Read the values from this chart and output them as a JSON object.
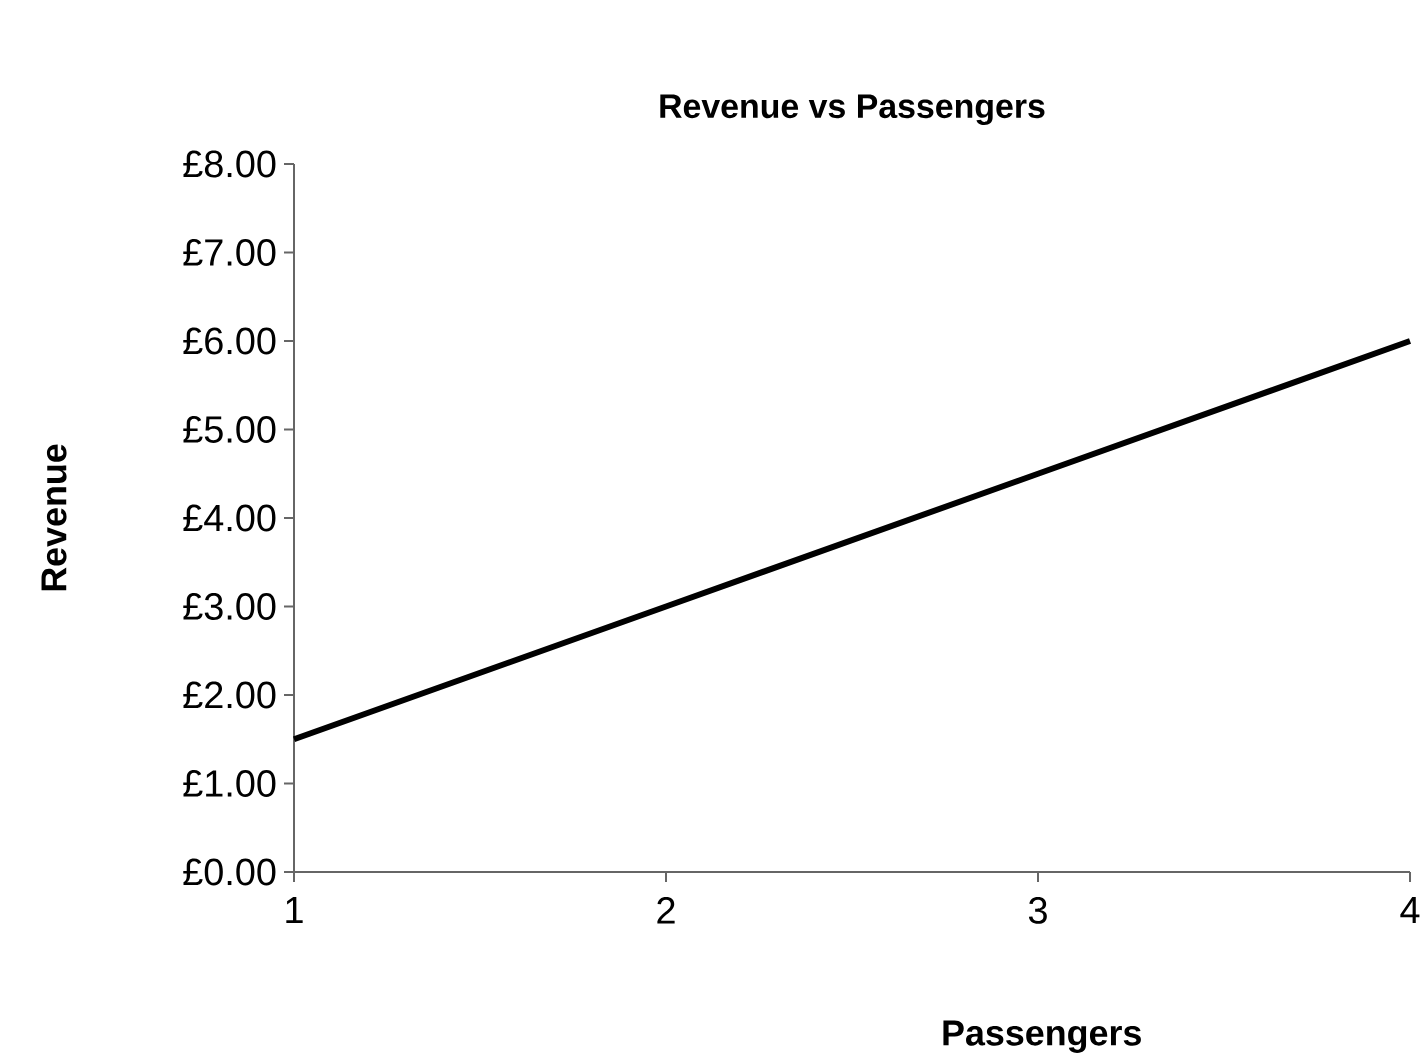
{
  "chart_data": {
    "type": "line",
    "title": "Revenue vs Passengers",
    "xlabel": "Passengers",
    "ylabel": "Revenue",
    "x": [
      1,
      2,
      3,
      4
    ],
    "values": [
      1.5,
      3.0,
      4.5,
      6.0
    ],
    "color": "#000000",
    "marker": "none",
    "line_style": "solid",
    "xlim": [
      1,
      4
    ],
    "ylim": [
      0,
      8
    ],
    "xticks": [
      1,
      2,
      3,
      4
    ],
    "yticks": [
      {
        "value": 0,
        "label": "£0.00"
      },
      {
        "value": 1,
        "label": "£1.00"
      },
      {
        "value": 2,
        "label": "£2.00"
      },
      {
        "value": 3,
        "label": "£3.00"
      },
      {
        "value": 4,
        "label": "£4.00"
      },
      {
        "value": 5,
        "label": "£5.00"
      },
      {
        "value": 6,
        "label": "£6.00"
      },
      {
        "value": 7,
        "label": "£7.00"
      },
      {
        "value": 8,
        "label": "£8.00"
      }
    ]
  }
}
